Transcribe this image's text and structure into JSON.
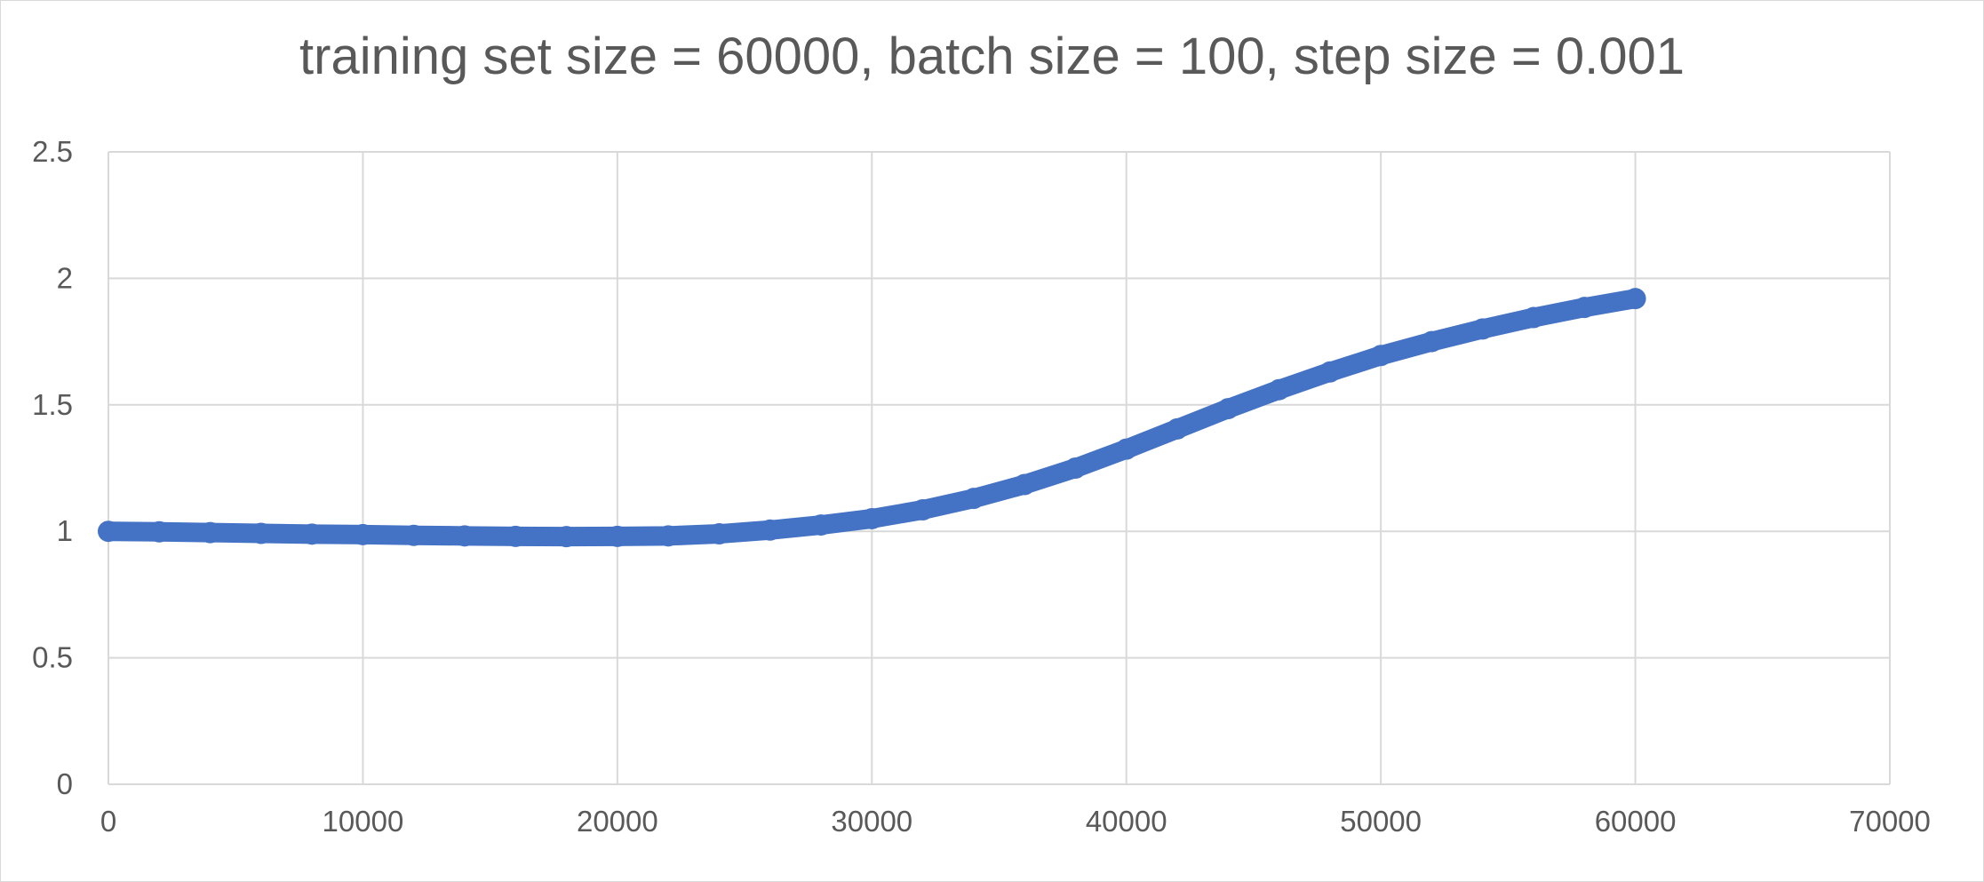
{
  "chart_data": {
    "type": "scatter",
    "title": "training set size = 60000, batch size = 100, step size = 0.001",
    "xlabel": "",
    "ylabel": "",
    "xlim": [
      0,
      70000
    ],
    "ylim": [
      0,
      2.5
    ],
    "x_ticks": [
      "0",
      "10000",
      "20000",
      "30000",
      "40000",
      "50000",
      "60000",
      "70000"
    ],
    "y_ticks": [
      "0",
      "0.5",
      "1",
      "1.5",
      "2",
      "2.5"
    ],
    "grid": true,
    "legend": "none",
    "series_color": "#4472C4",
    "series": [
      {
        "x": [
          0,
          2000,
          4000,
          6000,
          8000,
          10000,
          12000,
          14000,
          16000,
          18000,
          20000,
          22000,
          24000,
          26000,
          28000,
          30000,
          32000,
          34000,
          36000,
          38000,
          40000,
          42000,
          44000,
          46000,
          48000,
          50000,
          52000,
          54000,
          56000,
          58000,
          60000
        ],
        "y": [
          1.0,
          0.998,
          0.995,
          0.992,
          0.989,
          0.987,
          0.984,
          0.982,
          0.98,
          0.979,
          0.98,
          0.982,
          0.99,
          1.005,
          1.025,
          1.05,
          1.085,
          1.13,
          1.185,
          1.25,
          1.325,
          1.405,
          1.485,
          1.56,
          1.63,
          1.695,
          1.75,
          1.8,
          1.845,
          1.885,
          1.92
        ]
      }
    ]
  }
}
